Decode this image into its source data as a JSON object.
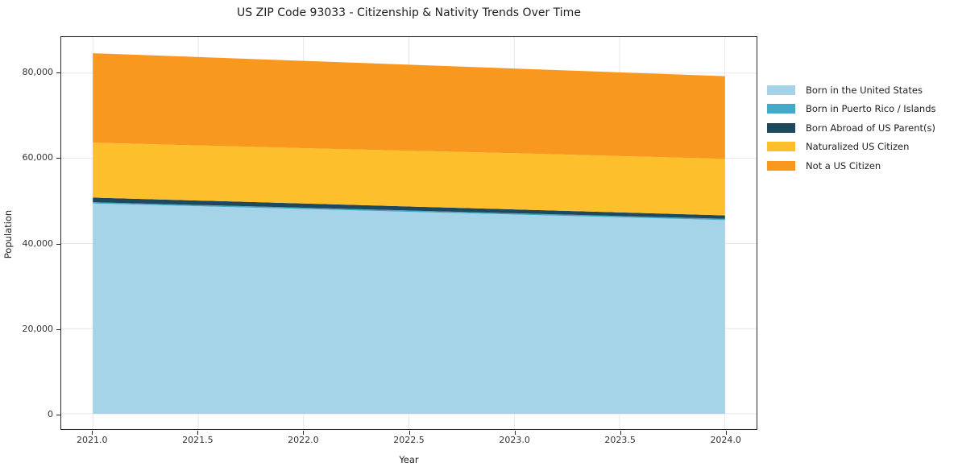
{
  "title": "US ZIP Code 93033 - Citizenship & Nativity Trends Over Time",
  "chart_data": {
    "type": "area",
    "stacked": true,
    "title": "US ZIP Code 93033 - Citizenship & Nativity Trends Over Time",
    "xlabel": "Year",
    "ylabel": "Population",
    "x": [
      2021,
      2022,
      2023,
      2024
    ],
    "series": [
      {
        "name": "Born in the United States",
        "color": "#A5D3E8",
        "values": [
          49400,
          48100,
          46800,
          45500
        ]
      },
      {
        "name": "Born in Puerto Rico / Islands",
        "color": "#45A8C4",
        "values": [
          300,
          300,
          300,
          300
        ]
      },
      {
        "name": "Born Abroad of US Parent(s)",
        "color": "#20485C",
        "values": [
          1100,
          1000,
          900,
          800
        ]
      },
      {
        "name": "Naturalized US Citizen",
        "color": "#FDC02C",
        "values": [
          12900,
          13000,
          13200,
          13300
        ]
      },
      {
        "name": "Not a US Citizen",
        "color": "#F8981F",
        "values": [
          21000,
          20500,
          19900,
          19400
        ]
      }
    ],
    "totals": [
      84700,
      82900,
      81100,
      79300
    ],
    "xlim": [
      2020.85,
      2024.15
    ],
    "ylim": [
      -3600,
      88500
    ],
    "xticks": {
      "values": [
        2021.0,
        2021.5,
        2022.0,
        2022.5,
        2023.0,
        2023.5,
        2024.0
      ],
      "labels": [
        "2021.0",
        "2021.5",
        "2022.0",
        "2022.5",
        "2023.0",
        "2023.5",
        "2024.0"
      ]
    },
    "yticks": {
      "values": [
        0,
        20000,
        40000,
        60000,
        80000
      ],
      "labels": [
        "0",
        "20,000",
        "40,000",
        "60,000",
        "80,000"
      ]
    },
    "grid": true,
    "legend_position": "right"
  },
  "colors": {
    "grid": "#e7e7e7",
    "spine": "#262626",
    "tick_text": "#333333",
    "background": "#ffffff"
  }
}
